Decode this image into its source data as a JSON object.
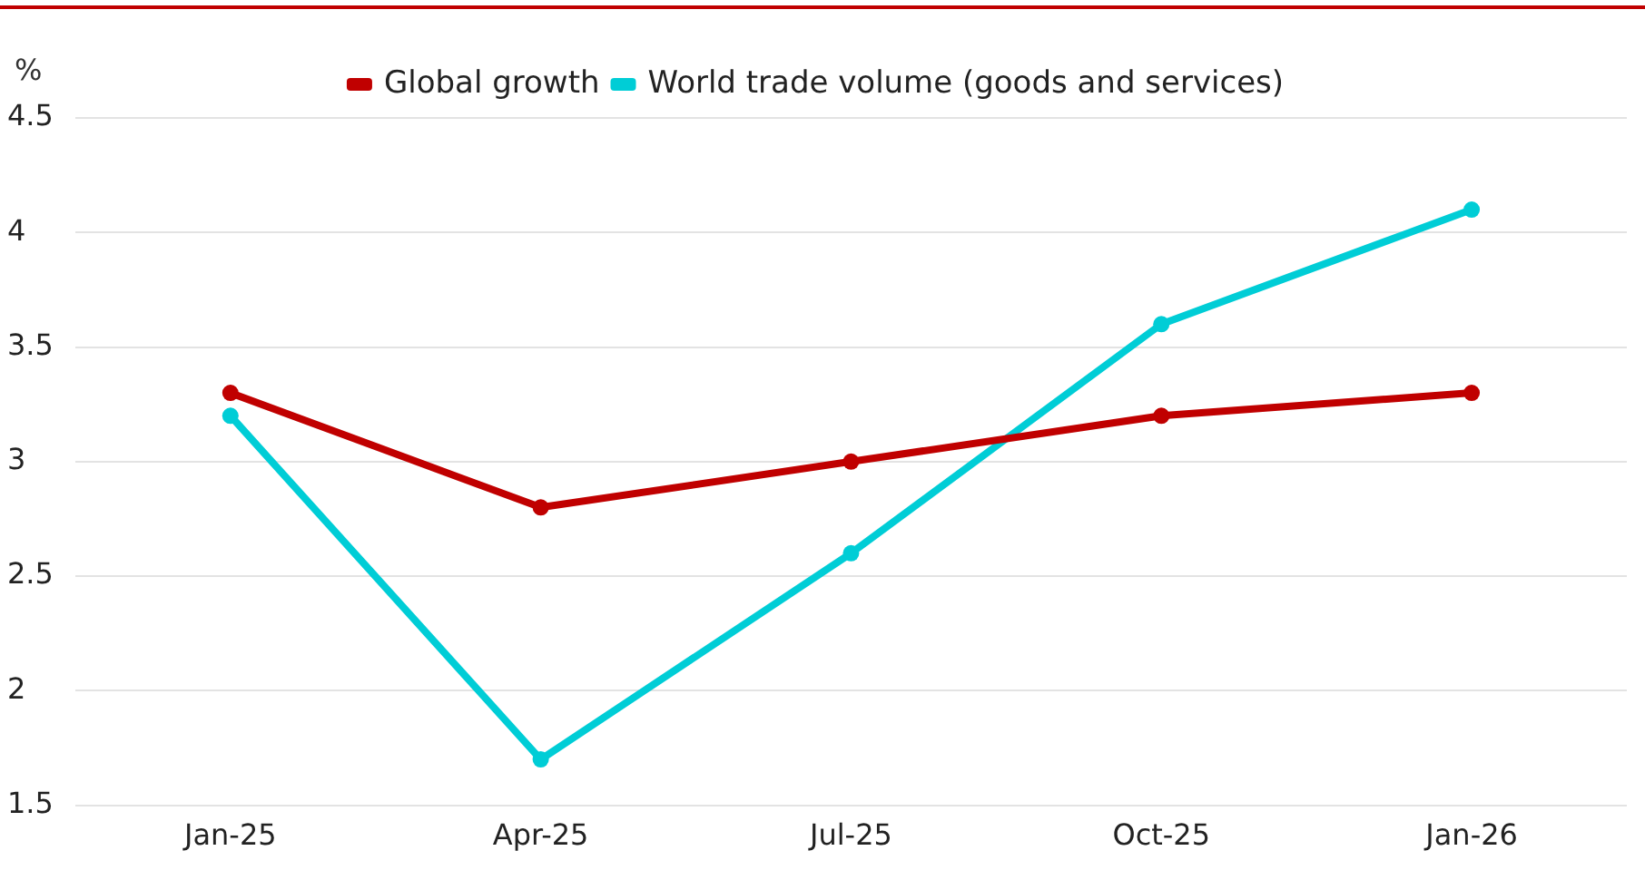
{
  "chart_data": {
    "type": "line",
    "ylabel": "%",
    "categories": [
      "Jan-25",
      "Apr-25",
      "Jul-25",
      "Oct-25",
      "Jan-26"
    ],
    "series": [
      {
        "name": "Global growth",
        "color": "#c00000",
        "values": [
          3.3,
          2.8,
          3.0,
          3.2,
          3.3
        ]
      },
      {
        "name": "World trade volume (goods and services)",
        "color": "#00cdd6",
        "values": [
          3.2,
          1.7,
          2.6,
          3.6,
          4.1
        ]
      }
    ],
    "ylim": [
      1.5,
      4.5
    ],
    "yticks": [
      1.5,
      2,
      2.5,
      3,
      3.5,
      4,
      4.5
    ],
    "grid": "y",
    "legend": "top",
    "marker": "circle",
    "line_style": "solid"
  }
}
